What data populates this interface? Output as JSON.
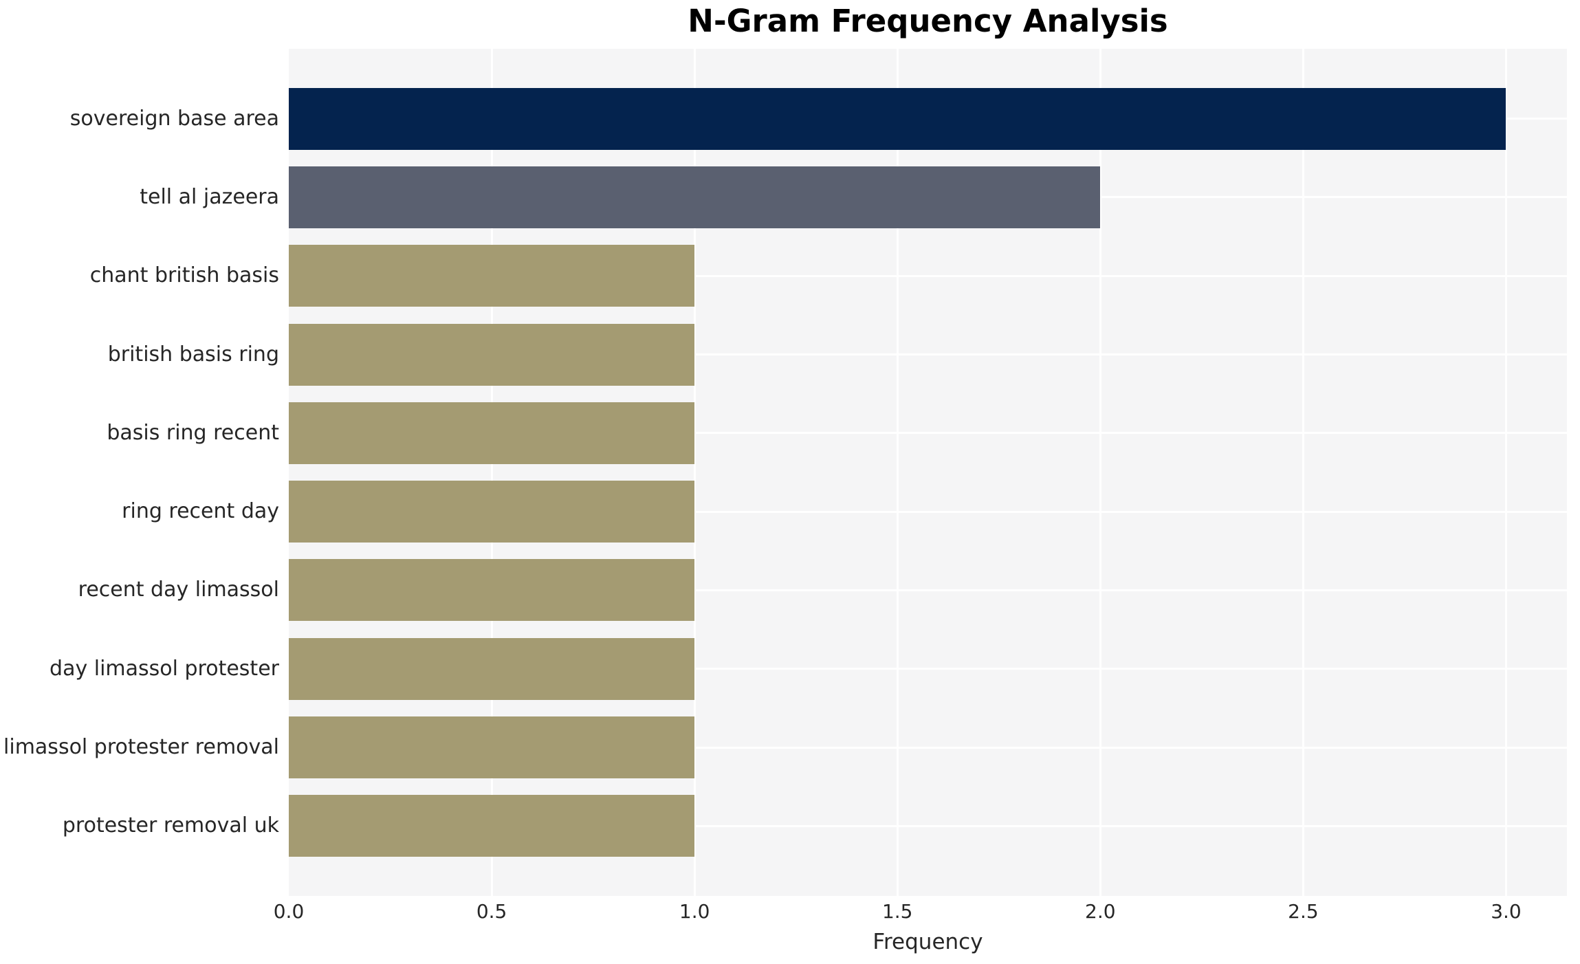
{
  "chart_data": {
    "type": "bar",
    "orientation": "horizontal",
    "title": "N-Gram Frequency Analysis",
    "xlabel": "Frequency",
    "ylabel": "",
    "categories": [
      "sovereign base area",
      "tell al jazeera",
      "chant british basis",
      "british basis ring",
      "basis ring recent",
      "ring recent day",
      "recent day limassol",
      "day limassol protester",
      "limassol protester removal",
      "protester removal uk"
    ],
    "values": [
      3,
      2,
      1,
      1,
      1,
      1,
      1,
      1,
      1,
      1
    ],
    "bar_colors": [
      "#04234e",
      "#5a6070",
      "#a49b72",
      "#a49b72",
      "#a49b72",
      "#a49b72",
      "#a49b72",
      "#a49b72",
      "#a49b72",
      "#a49b72"
    ],
    "xlim": [
      0,
      3.15
    ],
    "xticks": [
      0.0,
      0.5,
      1.0,
      1.5,
      2.0,
      2.5,
      3.0
    ],
    "xtick_labels": [
      "0.0",
      "0.5",
      "1.0",
      "1.5",
      "2.0",
      "2.5",
      "3.0"
    ],
    "grid": true,
    "legend": false,
    "plot_background": "#f5f5f6",
    "grid_color": "#ffffff",
    "title_color": "#000000",
    "text_color": "#262626"
  }
}
